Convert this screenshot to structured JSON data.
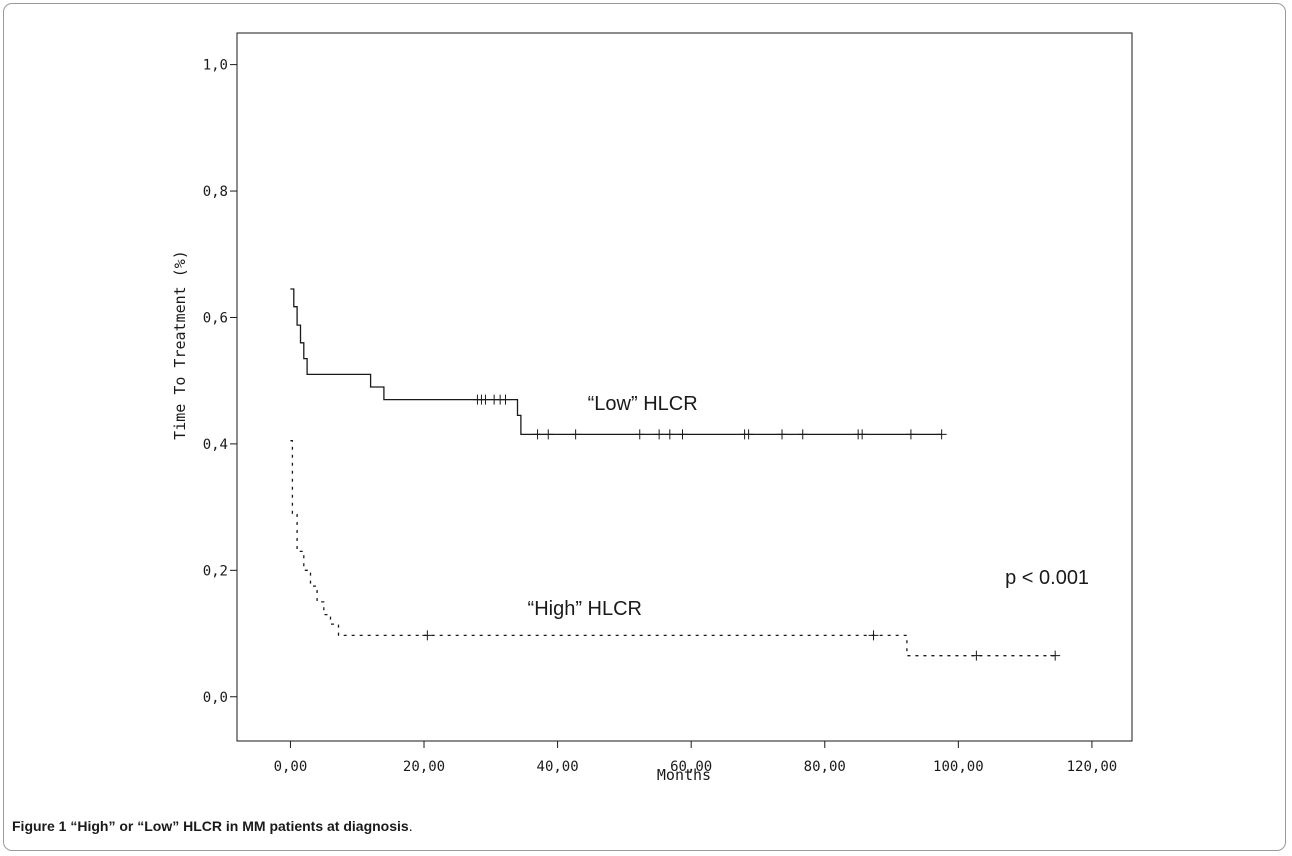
{
  "chart_data": {
    "type": "line",
    "xlabel": "Months",
    "ylabel": "Time To Treatment (%)",
    "xlim": [
      -8,
      126
    ],
    "ylim": [
      -0.07,
      1.05
    ],
    "x_ticks": [
      0,
      20,
      40,
      60,
      80,
      100,
      120
    ],
    "x_tick_labels": [
      "0,00",
      "20,00",
      "40,00",
      "60,00",
      "80,00",
      "100,00",
      "120,00"
    ],
    "y_ticks": [
      0,
      0.2,
      0.4,
      0.6,
      0.8,
      1.0
    ],
    "y_tick_labels": [
      "0,0",
      "0,2",
      "0,4",
      "0,6",
      "0,8",
      "1,0"
    ],
    "grid": false,
    "series": [
      {
        "name": "“Low” HLCR",
        "style": "solid",
        "color": "#1a1a1a",
        "steps": [
          [
            0,
            0.645
          ],
          [
            0.5,
            0.617
          ],
          [
            1.0,
            0.588
          ],
          [
            1.5,
            0.56
          ],
          [
            2.0,
            0.535
          ],
          [
            2.5,
            0.51
          ],
          [
            12,
            0.49
          ],
          [
            14,
            0.47
          ],
          [
            34,
            0.445
          ],
          [
            34.5,
            0.415
          ],
          [
            97.5,
            0.415
          ]
        ],
        "censored": [
          [
            28,
            0.47
          ],
          [
            28.6,
            0.47
          ],
          [
            29.2,
            0.47
          ],
          [
            30.5,
            0.47
          ],
          [
            31.4,
            0.47
          ],
          [
            32.2,
            0.47
          ],
          [
            37,
            0.415
          ],
          [
            38.6,
            0.415
          ],
          [
            42.7,
            0.415
          ],
          [
            52.3,
            0.415
          ],
          [
            55.2,
            0.415
          ],
          [
            56.8,
            0.415
          ],
          [
            58.7,
            0.415
          ],
          [
            68.0,
            0.415
          ],
          [
            68.6,
            0.415
          ],
          [
            73.6,
            0.415
          ],
          [
            76.7,
            0.415
          ],
          [
            85.0,
            0.415
          ],
          [
            85.6,
            0.415
          ],
          [
            92.9,
            0.415
          ],
          [
            97.5,
            0.415
          ]
        ]
      },
      {
        "name": "“High” HLCR",
        "style": "dotted",
        "color": "#1a1a1a",
        "steps": [
          [
            0,
            0.405
          ],
          [
            0.3,
            0.29
          ],
          [
            1.0,
            0.23
          ],
          [
            2.0,
            0.2
          ],
          [
            3.0,
            0.175
          ],
          [
            4.0,
            0.15
          ],
          [
            5.0,
            0.13
          ],
          [
            6.0,
            0.115
          ],
          [
            7.2,
            0.097
          ],
          [
            92.3,
            0.065
          ],
          [
            114.5,
            0.065
          ]
        ],
        "censored": [
          [
            20.5,
            0.097
          ],
          [
            87.3,
            0.097
          ],
          [
            102.7,
            0.065
          ],
          [
            114.5,
            0.065
          ]
        ]
      }
    ],
    "annotations": [
      {
        "text": "“Low” HLCR",
        "x": 44.5,
        "y": 0.454
      },
      {
        "text": "“High” HLCR",
        "x": 35.5,
        "y": 0.129
      },
      {
        "text": "p < 0.001",
        "x": 107,
        "y": 0.178
      }
    ]
  },
  "caption": {
    "label": "Figure 1",
    "title": "“High” or “Low” HLCR in MM patients at diagnosis",
    "period": "."
  }
}
